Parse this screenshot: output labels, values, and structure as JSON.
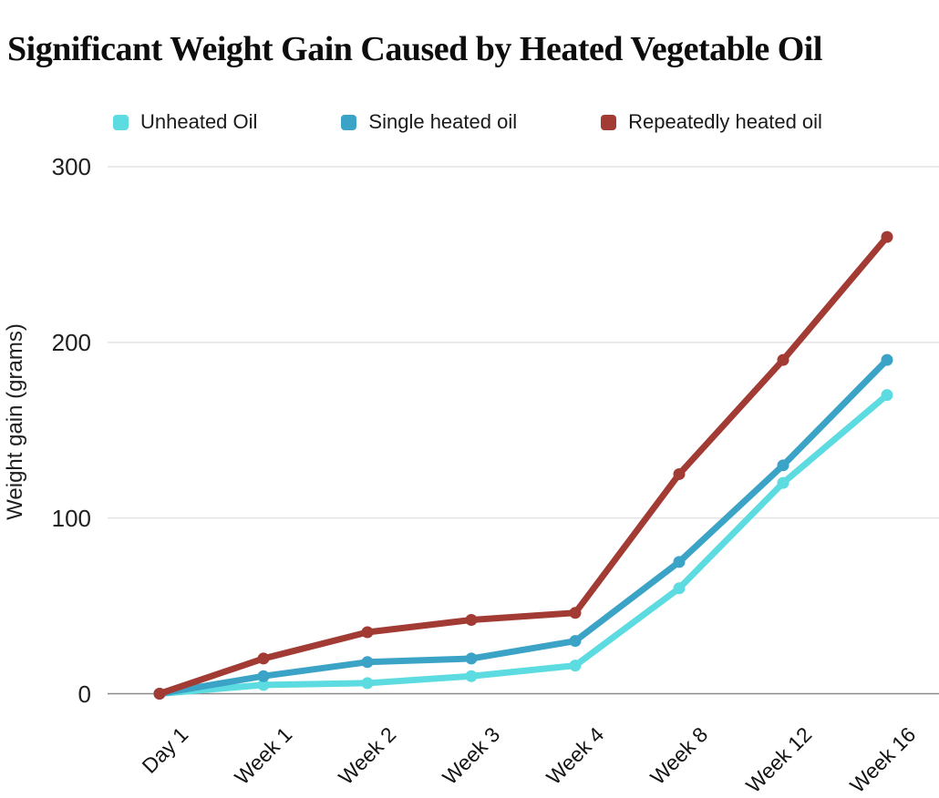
{
  "title": "Significant Weight Gain Caused by Heated Vegetable Oil",
  "y_axis_label": "Weight gain (grams)",
  "legend": [
    {
      "label": "Unheated Oil",
      "color": "#5CDBE0"
    },
    {
      "label": "Single heated oil",
      "color": "#3BA4C6"
    },
    {
      "label": "Repeatedly heated oil",
      "color": "#A23B34"
    }
  ],
  "chart_data": {
    "type": "line",
    "categories": [
      "Day 1",
      "Week 1",
      "Week 2",
      "Week 3",
      "Week 4",
      "Week 8",
      "Week 12",
      "Week 16"
    ],
    "series": [
      {
        "name": "Unheated Oil",
        "color": "#5CDBE0",
        "values": [
          0,
          5,
          6,
          10,
          16,
          60,
          120,
          170
        ]
      },
      {
        "name": "Single heated oil",
        "color": "#3BA4C6",
        "values": [
          0,
          10,
          18,
          20,
          30,
          75,
          130,
          190
        ]
      },
      {
        "name": "Repeatedly heated oil",
        "color": "#A23B34",
        "values": [
          0,
          20,
          35,
          42,
          46,
          125,
          190,
          260
        ]
      }
    ],
    "title": "Significant Weight Gain Caused by Heated Vegetable Oil",
    "xlabel": "",
    "ylabel": "Weight gain (grams)",
    "ylim": [
      0,
      300
    ],
    "y_ticks": [
      0,
      100,
      200,
      300
    ],
    "grid": true,
    "legend_position": "top",
    "x_tick_rotation": -45
  },
  "colors": {
    "grid_line": "#E3E3E3",
    "zero_axis": "#8A8A8A",
    "text": "#1A1A1A",
    "background": "#FFFFFF"
  }
}
